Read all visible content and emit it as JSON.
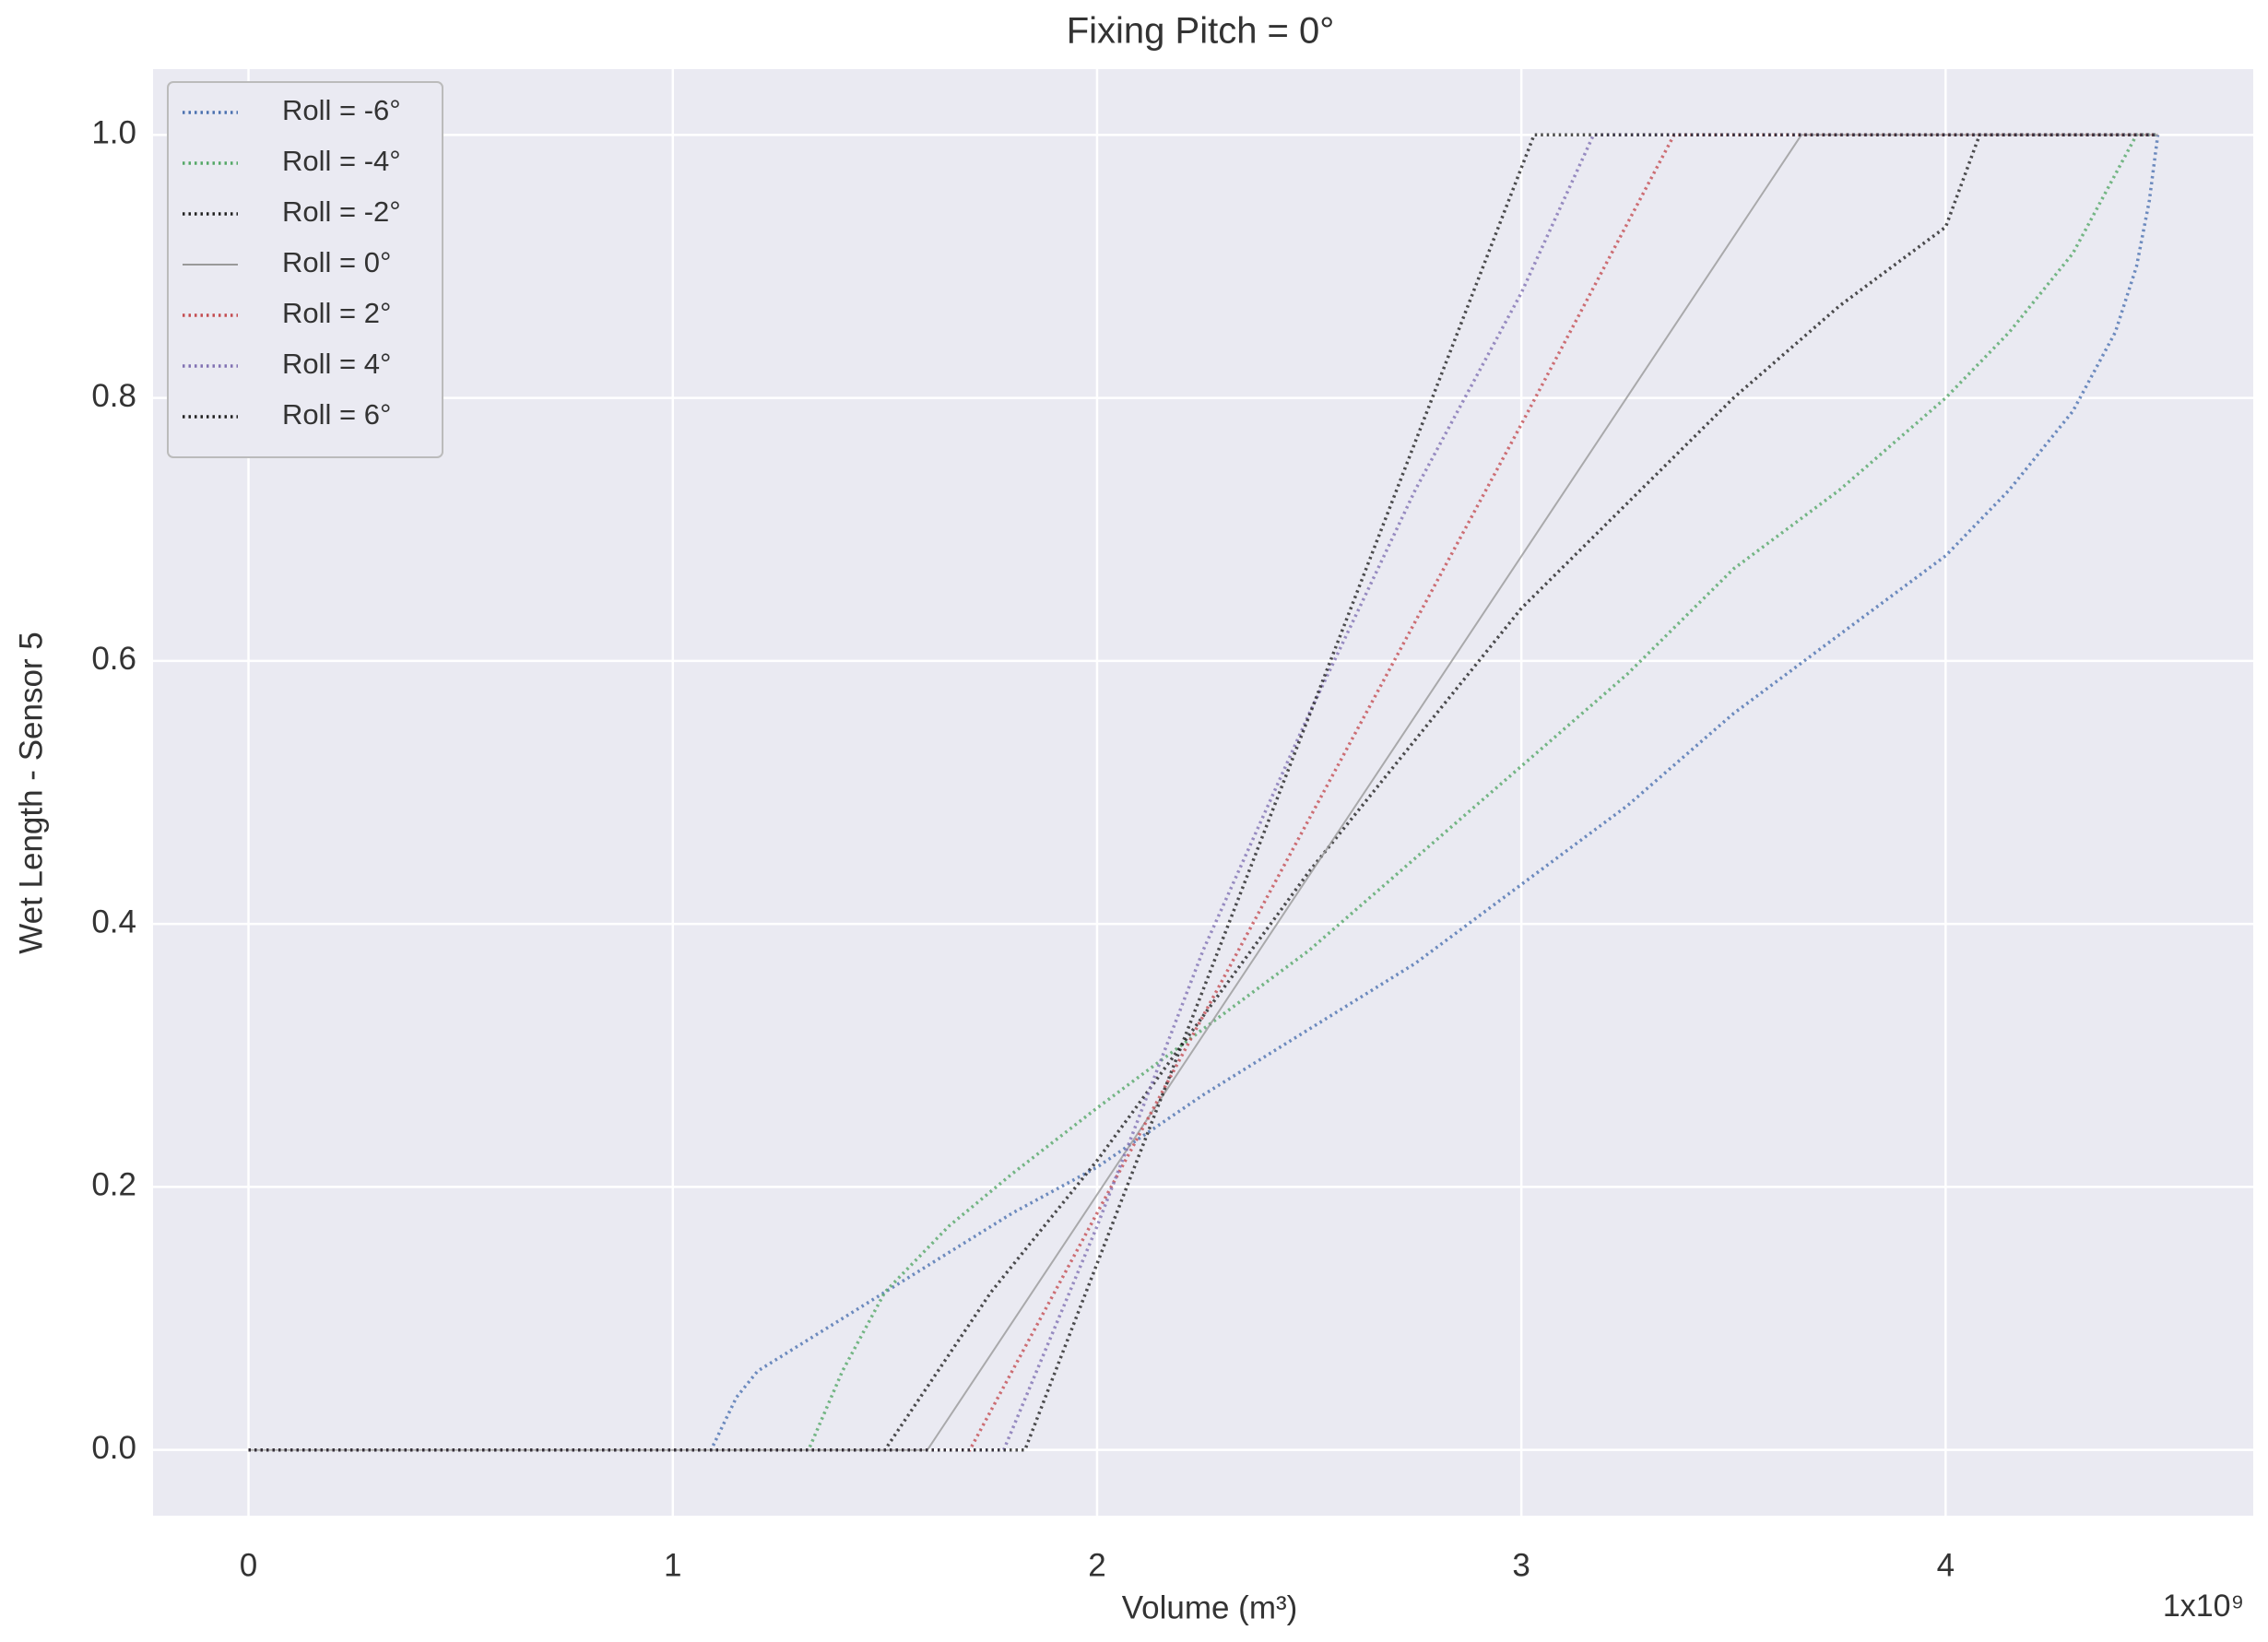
{
  "chart_data": {
    "type": "line",
    "title": "Fixing Pitch = 0°",
    "xlabel": "Volume (m³)",
    "ylabel": "Wet Length - Sensor 5",
    "x_offset_label": "1x10⁹",
    "xlim": [
      -0.225,
      4.725
    ],
    "ylim": [
      -0.05,
      1.05
    ],
    "xticks": [
      0,
      1,
      2,
      3,
      4
    ],
    "yticks": [
      {
        "value": 0,
        "label": "0.0"
      },
      0.2,
      0.4,
      0.6,
      0.8,
      {
        "value": 1,
        "label": "1.0"
      }
    ],
    "grid": true,
    "legend": "upper left",
    "background": "#eaeaf2",
    "series": [
      {
        "name": "Roll = -6°",
        "color": "#4c72b0",
        "style": "dotted",
        "x": [
          0,
          1.09,
          1.15,
          1.2,
          1.3,
          1.45,
          1.6,
          1.8,
          2.0,
          2.25,
          2.5,
          2.75,
          3.0,
          3.25,
          3.5,
          3.75,
          4.0,
          4.15,
          4.3,
          4.4,
          4.45,
          4.48,
          4.5
        ],
        "values": [
          0,
          0,
          0.04,
          0.06,
          0.08,
          0.11,
          0.14,
          0.18,
          0.215,
          0.27,
          0.32,
          0.37,
          0.43,
          0.49,
          0.56,
          0.62,
          0.68,
          0.73,
          0.79,
          0.85,
          0.9,
          0.95,
          1.0
        ]
      },
      {
        "name": "Roll = -4°",
        "color": "#55a868",
        "style": "dotted",
        "x": [
          0,
          1.32,
          1.4,
          1.5,
          1.65,
          1.8,
          2.0,
          2.25,
          2.5,
          2.75,
          3.0,
          3.25,
          3.5,
          3.75,
          4.0,
          4.15,
          4.3,
          4.45,
          4.5
        ],
        "values": [
          0,
          0,
          0.06,
          0.12,
          0.17,
          0.21,
          0.26,
          0.32,
          0.38,
          0.45,
          0.52,
          0.59,
          0.67,
          0.73,
          0.8,
          0.85,
          0.91,
          1.0,
          1.0
        ]
      },
      {
        "name": "Roll = -2°",
        "color": "#222222",
        "style": "dotted",
        "x": [
          0,
          1.5,
          1.75,
          2.0,
          2.25,
          2.5,
          2.75,
          3.0,
          3.25,
          3.5,
          3.75,
          4.0,
          4.08,
          4.5
        ],
        "values": [
          0,
          0,
          0.12,
          0.22,
          0.33,
          0.44,
          0.54,
          0.64,
          0.72,
          0.8,
          0.87,
          0.93,
          1.0,
          1.0
        ]
      },
      {
        "name": "Roll = 0°",
        "color": "#999999",
        "style": "solid",
        "x": [
          0,
          1.6,
          3.66,
          4.5
        ],
        "values": [
          0,
          0,
          1.0,
          1.0
        ]
      },
      {
        "name": "Roll = 2°",
        "color": "#c44e52",
        "style": "dotted",
        "x": [
          0,
          1.7,
          2.0,
          2.5,
          3.0,
          3.36,
          4.5
        ],
        "values": [
          0,
          0,
          0.18,
          0.48,
          0.78,
          1.0,
          1.0
        ]
      },
      {
        "name": "Roll = 4°",
        "color": "#8172b3",
        "style": "dotted",
        "x": [
          0,
          1.78,
          2.0,
          2.25,
          2.5,
          2.75,
          3.0,
          3.17,
          4.5
        ],
        "values": [
          0,
          0,
          0.17,
          0.38,
          0.56,
          0.73,
          0.88,
          1.0,
          1.0
        ]
      },
      {
        "name": "Roll = 6°",
        "color": "#222222",
        "style": "dotted",
        "x": [
          0,
          1.83,
          3.03,
          4.5
        ],
        "values": [
          0,
          0,
          1.0,
          1.0
        ]
      }
    ]
  }
}
